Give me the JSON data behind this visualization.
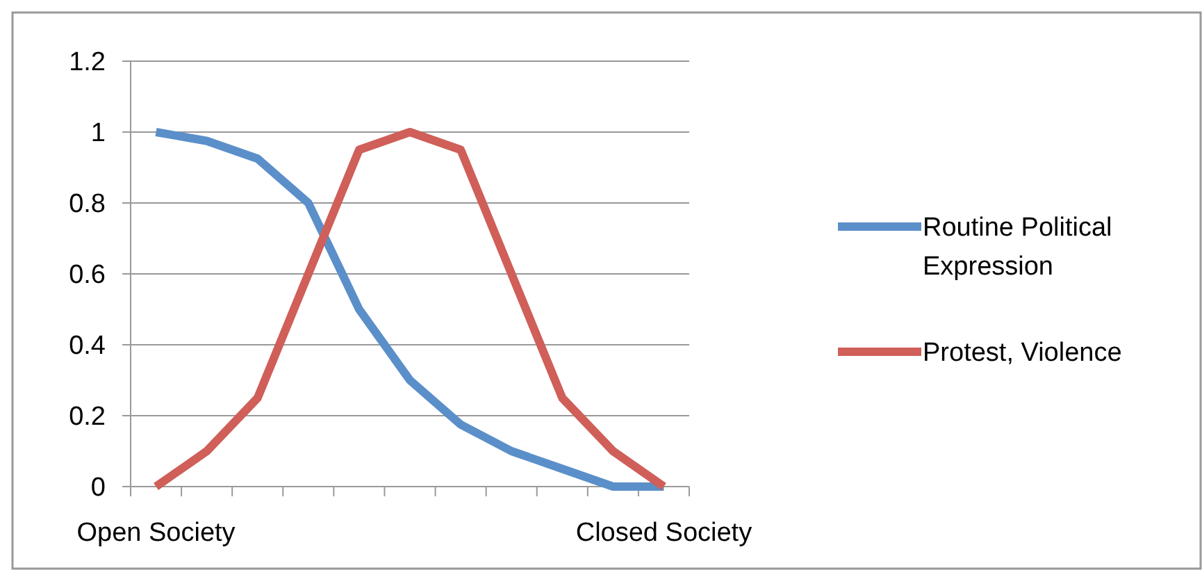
{
  "chart_data": {
    "type": "line",
    "categories": [
      "Open Society",
      null,
      null,
      null,
      null,
      null,
      null,
      null,
      null,
      null,
      "Closed Society"
    ],
    "series": [
      {
        "name": "Routine Political Expression",
        "color": "#5b8fc9",
        "values": [
          1,
          0.975,
          0.925,
          0.8,
          0.5,
          0.3,
          0.175,
          0.1,
          0.05,
          0,
          0
        ]
      },
      {
        "name": "Protest, Violence",
        "color": "#cf5f58",
        "values": [
          0,
          0.1,
          0.25,
          0.6,
          0.95,
          1,
          0.95,
          0.6,
          0.25,
          0.1,
          0
        ]
      }
    ],
    "ylim": [
      0,
      1.2
    ],
    "yticks": [
      0,
      0.2,
      0.4,
      0.6,
      0.8,
      1,
      1.2
    ],
    "grid": "y",
    "legend": "right",
    "marker": "none",
    "line_style": "solid"
  }
}
